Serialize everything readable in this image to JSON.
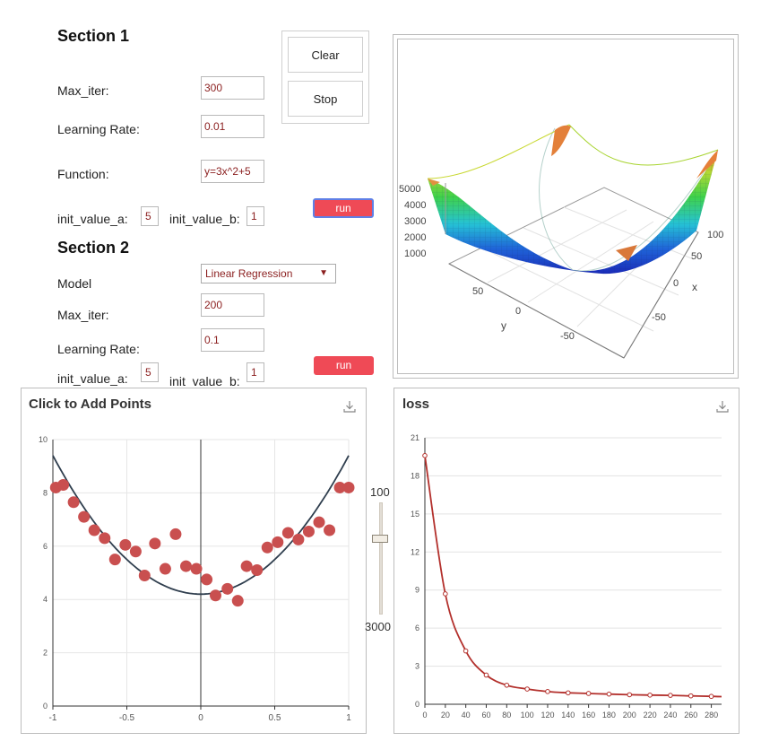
{
  "section1": {
    "title": "Section 1",
    "max_iter_label": "Max_iter:",
    "max_iter_value": "300",
    "lr_label": "Learning Rate:",
    "lr_value": "0.01",
    "function_label": "Function:",
    "function_value": "y=3x^2+5",
    "init_a_label": "init_value_a:",
    "init_a_value": "5",
    "init_b_label": "init_value_b:",
    "init_b_value": "1",
    "run_label": "run",
    "clear_label": "Clear",
    "stop_label": "Stop"
  },
  "section2": {
    "title": "Section 2",
    "model_label": "Model",
    "model_value": "Linear Regression",
    "model_arrow": "▼",
    "max_iter_label": "Max_iter:",
    "max_iter_value": "200",
    "lr_label": "Learning Rate:",
    "lr_value": "0.1",
    "init_a_label": "init_value_a:",
    "init_a_value": "5",
    "init_b_label": "init_value_b:",
    "init_b_value": "1",
    "run_label": "run"
  },
  "surface": {
    "z_ticks": [
      "5000",
      "4000",
      "3000",
      "2000",
      "1000"
    ],
    "y_ticks": [
      "50",
      "0",
      "-50"
    ],
    "x_ticks": [
      "100",
      "50",
      "0",
      "-50"
    ],
    "y_label": "y",
    "x_label": "x"
  },
  "slider": {
    "max_label": "100",
    "min_label": "3000",
    "level": 0.07
  },
  "colors": {
    "accent": "#ef4a56",
    "point": "#c94f4f",
    "curve": "#2f3e4e",
    "loss_line": "#b3302c"
  },
  "icons": {
    "download": "download-icon"
  },
  "chart_data": [
    {
      "type": "scatter",
      "title": "Click to Add Points",
      "xlim": [
        -1,
        1
      ],
      "ylim": [
        0,
        10
      ],
      "x_ticks": [
        "-1",
        "-0.5",
        "0",
        "0.5",
        "1"
      ],
      "y_ticks": [
        "0",
        "2",
        "4",
        "6",
        "8",
        "10"
      ],
      "series": [
        {
          "kind": "points",
          "x": [
            -0.98,
            -0.93,
            -0.86,
            -0.79,
            -0.72,
            -0.65,
            -0.58,
            -0.51,
            -0.44,
            -0.38,
            -0.31,
            -0.24,
            -0.17,
            -0.1,
            -0.03,
            0.04,
            0.1,
            0.18,
            0.25,
            0.31,
            0.38,
            0.45,
            0.52,
            0.59,
            0.66,
            0.73,
            0.8,
            0.87,
            0.94,
            1.0
          ],
          "y": [
            8.2,
            8.3,
            7.65,
            7.1,
            6.6,
            6.3,
            5.5,
            6.05,
            5.8,
            4.9,
            6.1,
            5.15,
            6.45,
            5.25,
            5.15,
            4.75,
            4.15,
            4.4,
            3.95,
            5.25,
            5.1,
            5.95,
            6.15,
            6.5,
            6.25,
            6.55,
            6.9,
            6.6,
            8.2,
            8.2
          ]
        },
        {
          "kind": "curve",
          "equation": "y = 5.2x^2 + 4.2"
        }
      ]
    },
    {
      "type": "line",
      "title": "loss",
      "xlim": [
        0,
        290
      ],
      "ylim": [
        0,
        21
      ],
      "x_ticks": [
        "0",
        "20",
        "40",
        "60",
        "80",
        "100",
        "120",
        "140",
        "160",
        "180",
        "200",
        "220",
        "240",
        "260",
        "280"
      ],
      "y_ticks": [
        "0",
        "3",
        "6",
        "9",
        "12",
        "15",
        "18",
        "21"
      ],
      "x": [
        0,
        20,
        40,
        60,
        80,
        100,
        120,
        140,
        160,
        180,
        200,
        220,
        240,
        260,
        280
      ],
      "y": [
        19.6,
        8.7,
        4.2,
        2.3,
        1.5,
        1.2,
        1.0,
        0.9,
        0.85,
        0.8,
        0.75,
        0.72,
        0.7,
        0.66,
        0.62
      ],
      "tail": [
        290,
        0.6
      ]
    }
  ]
}
